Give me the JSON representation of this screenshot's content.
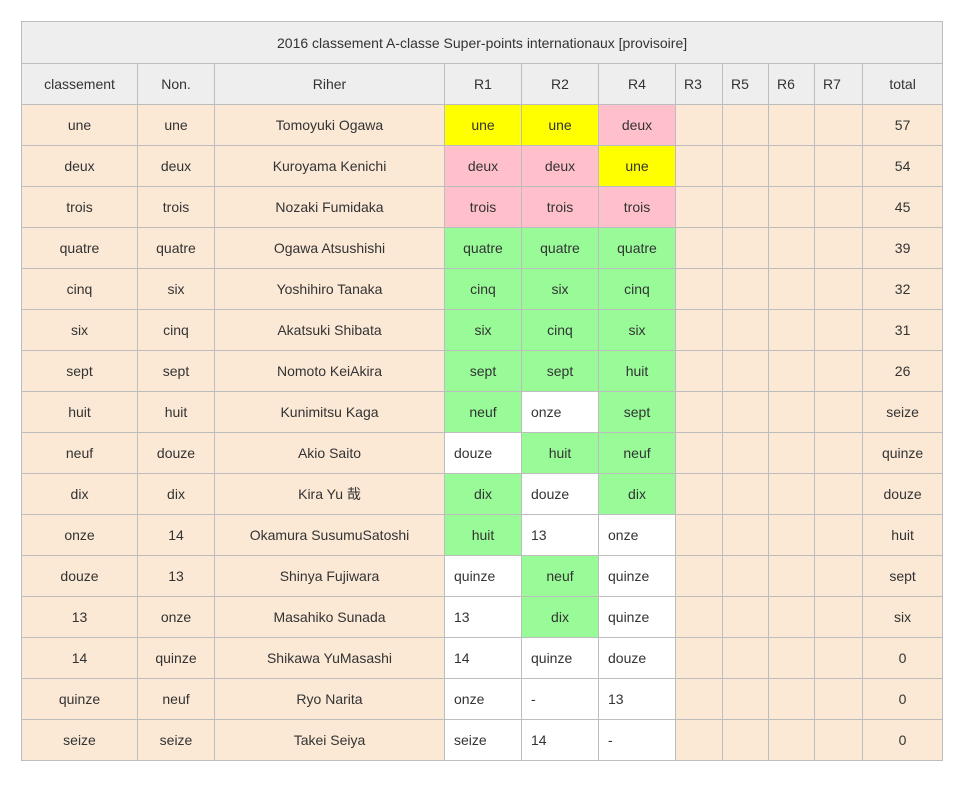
{
  "title": "2016 classement A-classe Super-points internationaux [provisoire]",
  "headers": [
    "classement",
    "Non.",
    "Riher",
    "R1",
    "R2",
    "R4",
    "R3",
    "R5",
    "R6",
    "R7",
    "total"
  ],
  "colors": {
    "row_bg": "#fbe9d6",
    "header_bg": "#eeeeee",
    "yellow": "#ffff00",
    "pink": "#ffc0cb",
    "green": "#98fb98",
    "white": "#ffffff"
  },
  "rows": [
    {
      "rank": "une",
      "no": "une",
      "rider": "Tomoyuki Ogawa",
      "r1": "une",
      "r1c": "yellow",
      "r2": "une",
      "r2c": "yellow",
      "r4": "deux",
      "r4c": "pink",
      "r3": "",
      "r5": "",
      "r6": "",
      "r7": "",
      "total": "57"
    },
    {
      "rank": "deux",
      "no": "deux",
      "rider": "Kuroyama Kenichi",
      "r1": "deux",
      "r1c": "pink",
      "r2": "deux",
      "r2c": "pink",
      "r4": "une",
      "r4c": "yellow",
      "r3": "",
      "r5": "",
      "r6": "",
      "r7": "",
      "total": "54"
    },
    {
      "rank": "trois",
      "no": "trois",
      "rider": "Nozaki Fumidaka",
      "r1": "trois",
      "r1c": "pink",
      "r2": "trois",
      "r2c": "pink",
      "r4": "trois",
      "r4c": "pink",
      "r3": "",
      "r5": "",
      "r6": "",
      "r7": "",
      "total": "45"
    },
    {
      "rank": "quatre",
      "no": "quatre",
      "rider": "Ogawa Atsushishi",
      "r1": "quatre",
      "r1c": "green",
      "r2": "quatre",
      "r2c": "green",
      "r4": "quatre",
      "r4c": "green",
      "r3": "",
      "r5": "",
      "r6": "",
      "r7": "",
      "total": "39"
    },
    {
      "rank": "cinq",
      "no": "six",
      "rider": "Yoshihiro Tanaka",
      "r1": "cinq",
      "r1c": "green",
      "r2": "six",
      "r2c": "green",
      "r4": "cinq",
      "r4c": "green",
      "r3": "",
      "r5": "",
      "r6": "",
      "r7": "",
      "total": "32"
    },
    {
      "rank": "six",
      "no": "cinq",
      "rider": "Akatsuki Shibata",
      "r1": "six",
      "r1c": "green",
      "r2": "cinq",
      "r2c": "green",
      "r4": "six",
      "r4c": "green",
      "r3": "",
      "r5": "",
      "r6": "",
      "r7": "",
      "total": "31"
    },
    {
      "rank": "sept",
      "no": "sept",
      "rider": "Nomoto KeiAkira",
      "r1": "sept",
      "r1c": "green",
      "r2": "sept",
      "r2c": "green",
      "r4": "huit",
      "r4c": "green",
      "r3": "",
      "r5": "",
      "r6": "",
      "r7": "",
      "total": "26"
    },
    {
      "rank": "huit",
      "no": "huit",
      "rider": "Kunimitsu Kaga",
      "r1": "neuf",
      "r1c": "green",
      "r2": "onze",
      "r2c": "white",
      "r4": "sept",
      "r4c": "green",
      "r3": "",
      "r5": "",
      "r6": "",
      "r7": "",
      "total": "seize"
    },
    {
      "rank": "neuf",
      "no": "douze",
      "rider": "Akio Saito",
      "r1": "douze",
      "r1c": "white",
      "r2": "huit",
      "r2c": "green",
      "r4": "neuf",
      "r4c": "green",
      "r3": "",
      "r5": "",
      "r6": "",
      "r7": "",
      "total": "quinze"
    },
    {
      "rank": "dix",
      "no": "dix",
      "rider": "Kira Yu 哉",
      "r1": "dix",
      "r1c": "green",
      "r2": "douze",
      "r2c": "white",
      "r4": "dix",
      "r4c": "green",
      "r3": "",
      "r5": "",
      "r6": "",
      "r7": "",
      "total": "douze"
    },
    {
      "rank": "onze",
      "no": "14",
      "rider": "Okamura SusumuSatoshi",
      "r1": "huit",
      "r1c": "green",
      "r2": "13",
      "r2c": "white",
      "r4": "onze",
      "r4c": "white",
      "r3": "",
      "r5": "",
      "r6": "",
      "r7": "",
      "total": "huit"
    },
    {
      "rank": "douze",
      "no": "13",
      "rider": "Shinya Fujiwara",
      "r1": "quinze",
      "r1c": "white",
      "r2": "neuf",
      "r2c": "green",
      "r4": "quinze",
      "r4c": "white",
      "r3": "",
      "r5": "",
      "r6": "",
      "r7": "",
      "total": "sept"
    },
    {
      "rank": "13",
      "no": "onze",
      "rider": "Masahiko Sunada",
      "r1": "13",
      "r1c": "white",
      "r2": "dix",
      "r2c": "green",
      "r4": "quinze",
      "r4c": "white",
      "r3": "",
      "r5": "",
      "r6": "",
      "r7": "",
      "total": "six"
    },
    {
      "rank": "14",
      "no": "quinze",
      "rider": "Shikawa YuMasashi",
      "r1": "14",
      "r1c": "white",
      "r2": "quinze",
      "r2c": "white",
      "r4": "douze",
      "r4c": "white",
      "r3": "",
      "r5": "",
      "r6": "",
      "r7": "",
      "total": "0"
    },
    {
      "rank": "quinze",
      "no": "neuf",
      "rider": "Ryo Narita",
      "r1": "onze",
      "r1c": "white",
      "r2": "-",
      "r2c": "white",
      "r4": "13",
      "r4c": "white",
      "r3": "",
      "r5": "",
      "r6": "",
      "r7": "",
      "total": "0"
    },
    {
      "rank": "seize",
      "no": "seize",
      "rider": "Takei Seiya",
      "r1": "seize",
      "r1c": "white",
      "r2": "14",
      "r2c": "white",
      "r4": "-",
      "r4c": "white",
      "r3": "",
      "r5": "",
      "r6": "",
      "r7": "",
      "total": "0"
    }
  ]
}
